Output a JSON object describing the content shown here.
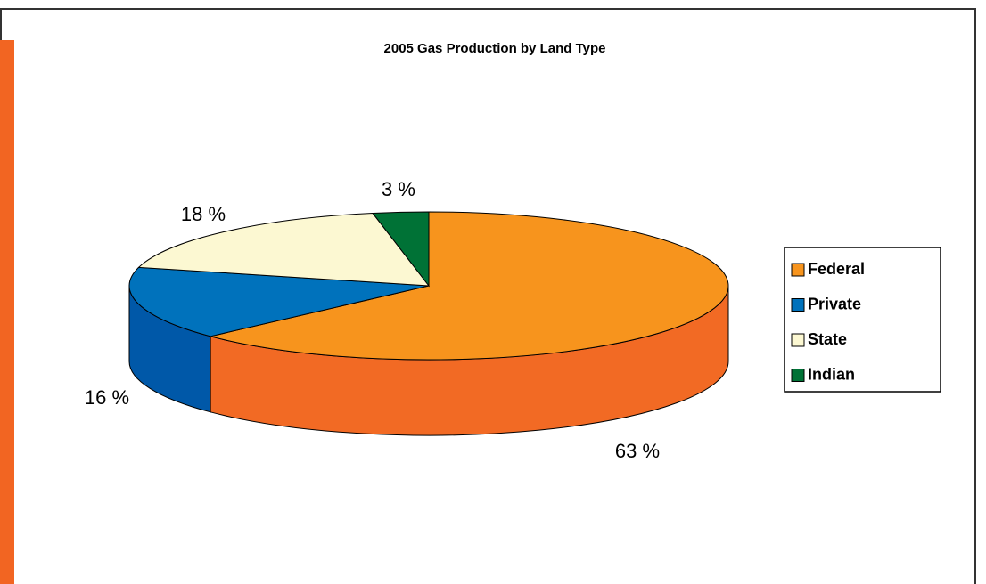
{
  "chart_data": {
    "type": "pie",
    "title": "2005 Gas Production by Land Type",
    "categories": [
      "Federal",
      "Private",
      "State",
      "Indian"
    ],
    "values": [
      63,
      16,
      18,
      3
    ],
    "value_labels": [
      "63 %",
      "16 %",
      "18 %",
      "3 %"
    ],
    "colors": [
      "#f7941d",
      "#0072bc",
      "#fcf8d2",
      "#007236"
    ],
    "side_colors": [
      "#f26a24",
      "#0058a8",
      "#ece7bd",
      "#005a2a"
    ],
    "legend": "right"
  }
}
